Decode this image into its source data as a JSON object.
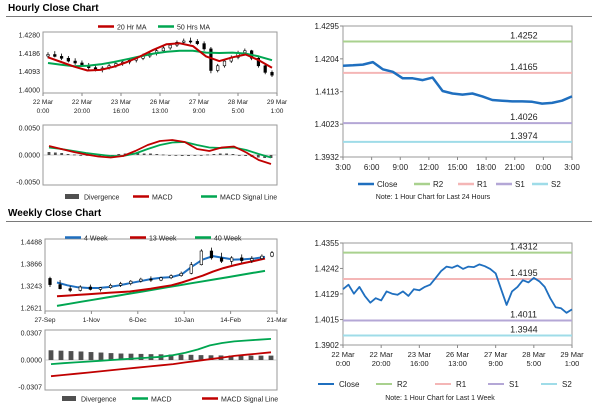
{
  "sections": {
    "hourly_title": "Hourly Close Chart",
    "weekly_title": "Weekly Close Chart"
  },
  "colors": {
    "blue": "#1f6fbf",
    "red": "#c00000",
    "green": "#00a651",
    "r2": "#a9d18e",
    "r1": "#f4b6b6",
    "s1": "#b4a7d6",
    "s2": "#9fdce8",
    "bar": "#505050"
  },
  "chart_data": [
    {
      "id": "hourly-price",
      "type": "line",
      "title": "Hourly Close Chart",
      "legend": [
        "20 Hr MA",
        "50 Hrs MA"
      ],
      "yticks": [
        "1.4280",
        "1.4186",
        "1.4093",
        "1.4000"
      ],
      "ylim": [
        1.3975,
        1.43
      ],
      "xticks": [
        "22 Mar 0:00",
        "22 Mar 20:00",
        "23 Mar 16:00",
        "26 Mar 13:00",
        "27 Mar 9:00",
        "28 Mar 5:00",
        "29 Mar 1:00"
      ],
      "ohlc": [
        [
          1.4172,
          1.4192,
          1.416,
          1.418
        ],
        [
          1.418,
          1.4198,
          1.4165,
          1.417
        ],
        [
          1.417,
          1.4185,
          1.415,
          1.416
        ],
        [
          1.416,
          1.4172,
          1.4138,
          1.4145
        ],
        [
          1.4145,
          1.416,
          1.4125,
          1.4135
        ],
        [
          1.4135,
          1.4148,
          1.4115,
          1.4122
        ],
        [
          1.4122,
          1.4135,
          1.41,
          1.411
        ],
        [
          1.411,
          1.4125,
          1.409,
          1.41
        ],
        [
          1.41,
          1.4118,
          1.4085,
          1.4108
        ],
        [
          1.4108,
          1.413,
          1.41,
          1.412
        ],
        [
          1.412,
          1.414,
          1.411,
          1.4132
        ],
        [
          1.4132,
          1.415,
          1.412,
          1.414
        ],
        [
          1.414,
          1.416,
          1.4128,
          1.415
        ],
        [
          1.415,
          1.417,
          1.4138,
          1.416
        ],
        [
          1.416,
          1.4185,
          1.415,
          1.4172
        ],
        [
          1.4172,
          1.4195,
          1.4162,
          1.4185
        ],
        [
          1.4185,
          1.421,
          1.4175,
          1.42
        ],
        [
          1.42,
          1.4225,
          1.419,
          1.4215
        ],
        [
          1.4215,
          1.424,
          1.4205,
          1.423
        ],
        [
          1.423,
          1.4255,
          1.422,
          1.4245
        ],
        [
          1.4245,
          1.4265,
          1.4232,
          1.4252
        ],
        [
          1.4252,
          1.427,
          1.4238,
          1.425
        ],
        [
          1.425,
          1.4262,
          1.423,
          1.4238
        ],
        [
          1.4238,
          1.425,
          1.42,
          1.421
        ],
        [
          1.421,
          1.422,
          1.408,
          1.4095
        ],
        [
          1.4095,
          1.413,
          1.4085,
          1.412
        ],
        [
          1.412,
          1.4155,
          1.411,
          1.4145
        ],
        [
          1.4145,
          1.4175,
          1.4135,
          1.4165
        ],
        [
          1.4165,
          1.42,
          1.4155,
          1.419
        ],
        [
          1.419,
          1.4212,
          1.4175,
          1.42
        ],
        [
          1.42,
          1.4205,
          1.415,
          1.416
        ],
        [
          1.416,
          1.417,
          1.411,
          1.412
        ],
        [
          1.412,
          1.413,
          1.4075,
          1.4085
        ],
        [
          1.4085,
          1.4095,
          1.406,
          1.407
        ]
      ],
      "series": [
        {
          "name": "20 Hr MA",
          "color": "#c00000",
          "values": [
            1.4165,
            1.414,
            1.4115,
            1.4095,
            1.4098,
            1.4115,
            1.414,
            1.417,
            1.4205,
            1.4235,
            1.424,
            1.4225,
            1.417,
            1.4145,
            1.4165,
            1.418,
            1.415,
            1.411
          ]
        },
        {
          "name": "50 Hrs MA",
          "color": "#00a651",
          "values": [
            1.4135,
            1.4125,
            1.4118,
            1.412,
            1.4128,
            1.414,
            1.4155,
            1.417,
            1.4185,
            1.4195,
            1.42,
            1.42,
            1.419,
            1.4188,
            1.419,
            1.4185,
            1.417,
            1.415
          ]
        }
      ]
    },
    {
      "id": "hourly-macd",
      "type": "bar",
      "legend": [
        "Divergence",
        "MACD",
        "MACD Signal Line"
      ],
      "yticks": [
        "0.0050",
        "0.0000",
        "-0.0050"
      ],
      "ylim": [
        -0.006,
        0.006
      ],
      "divergence": [
        0.0006,
        0.0005,
        0.0004,
        0.0002,
        0.0001,
        0.0,
        -0.0001,
        -0.0002,
        -0.0002,
        -0.0001,
        0.0,
        0.0002,
        0.0003,
        0.0004,
        0.0004,
        0.0003,
        0.0003,
        0.0002,
        0.0001,
        0.0,
        -0.0001,
        -0.0002,
        -0.0002,
        -0.0001,
        0.0,
        0.0001,
        0.0002,
        0.0003,
        0.0003,
        0.0002,
        0.0,
        -0.0002,
        -0.0004,
        -0.0005,
        -0.0006,
        -0.0006
      ],
      "series": [
        {
          "name": "MACD",
          "color": "#c00000",
          "values": [
            0.0018,
            0.0012,
            0.0006,
            0.0001,
            -0.0003,
            -0.0005,
            -0.0002,
            0.0008,
            0.002,
            0.0028,
            0.003,
            0.0026,
            0.0012,
            0.0008,
            0.0015,
            0.0017,
            0.0005,
            -0.001,
            -0.0018
          ]
        },
        {
          "name": "MACD Signal Line",
          "color": "#00a651",
          "values": [
            0.0015,
            0.0012,
            0.0008,
            0.0004,
            0.0001,
            -0.0002,
            -0.0002,
            0.0003,
            0.0012,
            0.002,
            0.0025,
            0.0026,
            0.002,
            0.0015,
            0.0014,
            0.0015,
            0.001,
            0.0002,
            -0.0005
          ]
        }
      ]
    },
    {
      "id": "hourly-24h",
      "type": "line",
      "legend": [
        "Close",
        "R2",
        "R1",
        "S1",
        "S2"
      ],
      "yticks": [
        "1.4295",
        "1.4204",
        "1.4113",
        "1.4023",
        "1.3932"
      ],
      "ylim": [
        1.3932,
        1.4295
      ],
      "xticks": [
        "3:00",
        "6:00",
        "9:00",
        "12:00",
        "15:00",
        "18:00",
        "21:00",
        "0:00",
        "3:00"
      ],
      "levels": [
        {
          "name": "R2",
          "value": 1.4252,
          "label": "1.4252",
          "color": "#a9d18e"
        },
        {
          "name": "R1",
          "value": 1.4165,
          "label": "1.4165",
          "color": "#f4b6b6"
        },
        {
          "name": "S1",
          "value": 1.4026,
          "label": "1.4026",
          "color": "#b4a7d6"
        },
        {
          "name": "S2",
          "value": 1.3974,
          "label": "1.3974",
          "color": "#9fdce8"
        }
      ],
      "series": [
        {
          "name": "Close",
          "color": "#1f6fbf",
          "values": [
            1.4185,
            1.4186,
            1.4188,
            1.4195,
            1.4175,
            1.4168,
            1.415,
            1.415,
            1.4145,
            1.4152,
            1.4115,
            1.4108,
            1.4105,
            1.4108,
            1.41,
            1.409,
            1.4088,
            1.4086,
            1.4086,
            1.4085,
            1.408,
            1.4082,
            1.4088,
            1.41
          ]
        }
      ],
      "note": "Note: 1 Hour Chart for Last 24 Hours"
    },
    {
      "id": "weekly-price",
      "type": "line",
      "legend": [
        "4 Week",
        "13 Week",
        "40 Week"
      ],
      "yticks": [
        "1.4488",
        "1.3866",
        "1.3243",
        "1.2621"
      ],
      "ylim": [
        1.255,
        1.465
      ],
      "xticks": [
        "27-Sep",
        "1-Nov",
        "6-Dec",
        "10-Jan",
        "14-Feb",
        "21-Mar"
      ],
      "ohlc": [
        [
          1.35,
          1.355,
          1.325,
          1.332
        ],
        [
          1.332,
          1.345,
          1.318,
          1.32
        ],
        [
          1.32,
          1.328,
          1.31,
          1.315
        ],
        [
          1.315,
          1.33,
          1.312,
          1.325
        ],
        [
          1.325,
          1.332,
          1.315,
          1.318
        ],
        [
          1.318,
          1.325,
          1.312,
          1.323
        ],
        [
          1.323,
          1.335,
          1.32,
          1.33
        ],
        [
          1.33,
          1.34,
          1.325,
          1.335
        ],
        [
          1.335,
          1.345,
          1.33,
          1.342
        ],
        [
          1.342,
          1.352,
          1.338,
          1.348
        ],
        [
          1.348,
          1.356,
          1.34,
          1.345
        ],
        [
          1.345,
          1.355,
          1.342,
          1.352
        ],
        [
          1.352,
          1.362,
          1.348,
          1.358
        ],
        [
          1.358,
          1.37,
          1.355,
          1.365
        ],
        [
          1.365,
          1.398,
          1.362,
          1.39
        ],
        [
          1.39,
          1.435,
          1.388,
          1.43
        ],
        [
          1.43,
          1.44,
          1.405,
          1.41
        ],
        [
          1.41,
          1.425,
          1.395,
          1.4
        ],
        [
          1.4,
          1.415,
          1.39,
          1.41
        ],
        [
          1.41,
          1.42,
          1.395,
          1.402
        ],
        [
          1.402,
          1.415,
          1.395,
          1.408
        ],
        [
          1.408,
          1.42,
          1.405,
          1.415
        ],
        [
          1.415,
          1.43,
          1.412,
          1.425
        ]
      ],
      "series": [
        {
          "name": "4 Week",
          "color": "#1f6fbf",
          "values": [
            1.338,
            1.33,
            1.324,
            1.322,
            1.322,
            1.325,
            1.33,
            1.336,
            1.342,
            1.348,
            1.352,
            1.354,
            1.362,
            1.385,
            1.405,
            1.415,
            1.41,
            1.405,
            1.406,
            1.408,
            1.413
          ]
        },
        {
          "name": "13 Week",
          "color": "#c00000",
          "values": [
            1.298,
            1.3,
            1.302,
            1.304,
            1.306,
            1.308,
            1.31,
            1.312,
            1.316,
            1.32,
            1.325,
            1.33,
            1.338,
            1.348,
            1.358,
            1.37,
            1.38,
            1.388,
            1.395,
            1.401,
            1.408
          ]
        },
        {
          "name": "40 Week",
          "color": "#00a651",
          "values": [
            1.27,
            1.276,
            1.282,
            1.288,
            1.294,
            1.3,
            1.306,
            1.312,
            1.318,
            1.324,
            1.33,
            1.336,
            1.342,
            1.348,
            1.354,
            1.36,
            1.366,
            1.372
          ]
        }
      ]
    },
    {
      "id": "weekly-macd",
      "type": "bar",
      "legend": [
        "Divergence",
        "MACD",
        "MACD Signal Line"
      ],
      "yticks": [
        "0.0307",
        "0.0000",
        "-0.0307"
      ],
      "ylim": [
        -0.037,
        0.037
      ],
      "divergence": [
        0.012,
        0.0115,
        0.011,
        0.0105,
        0.0098,
        0.0092,
        0.0085,
        0.008,
        0.0078,
        0.0075,
        0.0072,
        0.007,
        0.0068,
        0.0066,
        0.0064,
        0.006,
        0.0058,
        0.0056,
        0.0055,
        0.0054,
        0.0054,
        0.0054,
        0.0054
      ],
      "series": [
        {
          "name": "MACD",
          "color": "#00a651",
          "values": [
            -0.005,
            -0.004,
            -0.003,
            -0.002,
            -0.001,
            0.0,
            0.001,
            0.002,
            0.003,
            0.004,
            0.006,
            0.009,
            0.013,
            0.018,
            0.021,
            0.023,
            0.024,
            0.025,
            0.026
          ]
        },
        {
          "name": "MACD Signal Line",
          "color": "#c00000",
          "values": [
            -0.02,
            -0.0185,
            -0.017,
            -0.0155,
            -0.014,
            -0.0125,
            -0.011,
            -0.0095,
            -0.008,
            -0.0065,
            -0.005,
            -0.003,
            -0.001,
            0.001,
            0.003,
            0.005,
            0.0065,
            0.008,
            0.0095
          ]
        }
      ]
    },
    {
      "id": "weekly-hourly-week",
      "type": "line",
      "legend": [
        "Close",
        "R2",
        "R1",
        "S1",
        "S2"
      ],
      "yticks": [
        "1.4355",
        "1.4242",
        "1.4129",
        "1.4015",
        "1.3902"
      ],
      "ylim": [
        1.3902,
        1.4355
      ],
      "xticks": [
        "22 Mar 0:00",
        "22 Mar 20:00",
        "23 Mar 16:00",
        "26 Mar 13:00",
        "27 Mar 9:00",
        "28 Mar 5:00",
        "29 Mar 1:00"
      ],
      "levels": [
        {
          "name": "R2",
          "value": 1.4312,
          "label": "1.4312",
          "color": "#a9d18e"
        },
        {
          "name": "R1",
          "value": 1.4195,
          "label": "1.4195",
          "color": "#f4b6b6"
        },
        {
          "name": "S1",
          "value": 1.4011,
          "label": "1.4011",
          "color": "#b4a7d6"
        },
        {
          "name": "S2",
          "value": 1.3944,
          "label": "1.3944",
          "color": "#9fdce8"
        }
      ],
      "series": [
        {
          "name": "Close",
          "color": "#1f6fbf",
          "values": [
            1.415,
            1.417,
            1.413,
            1.416,
            1.412,
            1.409,
            1.411,
            1.41,
            1.414,
            1.413,
            1.4125,
            1.414,
            1.412,
            1.415,
            1.4145,
            1.416,
            1.417,
            1.42,
            1.423,
            1.425,
            1.4245,
            1.4255,
            1.424,
            1.425,
            1.4248,
            1.426,
            1.4252,
            1.424,
            1.422,
            1.415,
            1.408,
            1.414,
            1.416,
            1.419,
            1.418,
            1.42,
            1.4185,
            1.416,
            1.411,
            1.407,
            1.4065,
            1.4045,
            1.406
          ]
        }
      ],
      "note": "Note: 1 Hour Chart for Last 1 Week"
    }
  ]
}
